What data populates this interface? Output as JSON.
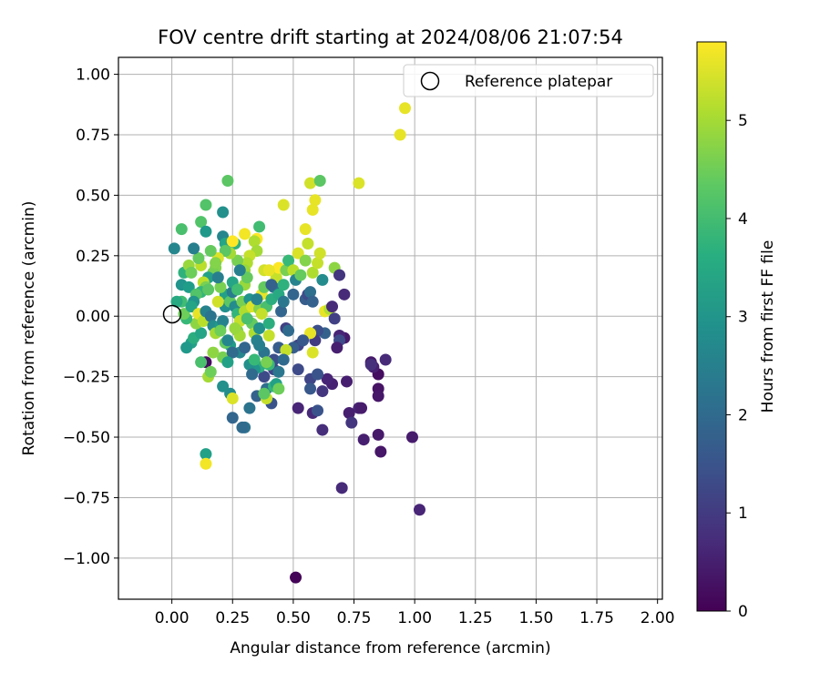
{
  "chart_data": {
    "type": "scatter",
    "title": "FOV centre drift starting at 2024/08/06 21:07:54",
    "xlabel": "Angular distance from reference (arcmin)",
    "ylabel": "Rotation from reference (arcmin)",
    "xlim": [
      -0.22,
      2.02
    ],
    "ylim": [
      -1.17,
      1.07
    ],
    "x_ticks": [
      "0.00",
      "0.25",
      "0.50",
      "0.75",
      "1.00",
      "1.25",
      "1.50",
      "1.75",
      "2.00"
    ],
    "y_ticks": [
      "1.00",
      "0.75",
      "0.50",
      "0.25",
      "0.00",
      "−0.25",
      "−0.50",
      "−0.75",
      "−1.00"
    ],
    "grid": true,
    "legend": {
      "position": "upper-right",
      "entries": [
        {
          "label": "Reference platepar",
          "marker": "open-circle"
        }
      ],
      "reference_point": [
        0,
        0
      ]
    },
    "colorbar": {
      "label": "Hours from first FF file",
      "colormap": "viridis",
      "range": [
        0,
        5.8
      ],
      "ticks": [
        "0",
        "1",
        "2",
        "3",
        "4",
        "5"
      ]
    },
    "points": [
      [
        0.51,
        -1.08,
        0.05
      ],
      [
        1.02,
        -0.8,
        0.6
      ],
      [
        0.7,
        -0.71,
        0.7
      ],
      [
        0.99,
        -0.5,
        0.45
      ],
      [
        0.86,
        -0.56,
        0.35
      ],
      [
        0.79,
        -0.51,
        0.5
      ],
      [
        0.85,
        -0.49,
        0.4
      ],
      [
        0.85,
        -0.3,
        0.3
      ],
      [
        0.85,
        -0.33,
        0.35
      ],
      [
        0.85,
        -0.24,
        0.2
      ],
      [
        0.82,
        -0.19,
        0.4
      ],
      [
        0.83,
        -0.21,
        0.5
      ],
      [
        0.82,
        -0.2,
        0.8
      ],
      [
        0.88,
        -0.18,
        0.7
      ],
      [
        0.77,
        -0.38,
        0.6
      ],
      [
        0.78,
        -0.38,
        0.45
      ],
      [
        0.73,
        -0.4,
        0.5
      ],
      [
        0.74,
        -0.44,
        0.9
      ],
      [
        0.72,
        -0.27,
        0.5
      ],
      [
        0.71,
        -0.09,
        0.4
      ],
      [
        0.69,
        -0.08,
        0.6
      ],
      [
        0.66,
        -0.28,
        0.55
      ],
      [
        0.64,
        -0.26,
        0.6
      ],
      [
        0.62,
        -0.31,
        0.9
      ],
      [
        0.62,
        -0.47,
        0.75
      ],
      [
        0.58,
        -0.4,
        0.7
      ],
      [
        0.6,
        -0.39,
        1.5
      ],
      [
        0.57,
        -0.26,
        1.2
      ],
      [
        0.57,
        -0.3,
        1.6
      ],
      [
        0.6,
        -0.24,
        1.5
      ],
      [
        0.52,
        -0.22,
        1.3
      ],
      [
        0.52,
        -0.12,
        1.2
      ],
      [
        0.52,
        -0.38,
        0.6
      ],
      [
        0.47,
        -0.05,
        1.1
      ],
      [
        0.44,
        -0.13,
        1.7
      ],
      [
        0.42,
        -0.18,
        1.4
      ],
      [
        0.42,
        -0.22,
        1.2
      ],
      [
        0.41,
        -0.36,
        1.5
      ],
      [
        0.38,
        -0.25,
        1.3
      ],
      [
        0.39,
        -0.3,
        2.1
      ],
      [
        0.35,
        -0.33,
        1.8
      ],
      [
        0.32,
        -0.38,
        2.2
      ],
      [
        0.3,
        -0.46,
        2.2
      ],
      [
        0.29,
        -0.46,
        2.0
      ],
      [
        0.25,
        -0.42,
        1.9
      ],
      [
        0.24,
        -0.32,
        2.8
      ],
      [
        0.14,
        -0.19,
        0.2
      ],
      [
        0.14,
        -0.57,
        3.3
      ],
      [
        0.14,
        -0.61,
        5.7
      ],
      [
        0.15,
        -0.25,
        5.0
      ],
      [
        0.25,
        -0.34,
        5.5
      ],
      [
        0.39,
        -0.34,
        5.3
      ],
      [
        0.38,
        -0.32,
        4.3
      ],
      [
        0.42,
        -0.29,
        3.8
      ],
      [
        0.43,
        -0.28,
        3.3
      ],
      [
        0.36,
        -0.21,
        3.6
      ],
      [
        0.34,
        -0.22,
        3.0
      ],
      [
        0.32,
        -0.2,
        2.9
      ],
      [
        0.28,
        -0.15,
        2.7
      ],
      [
        0.24,
        -0.12,
        3.2
      ],
      [
        0.22,
        -0.11,
        4.4
      ],
      [
        0.21,
        -0.17,
        4.6
      ],
      [
        0.17,
        -0.15,
        4.8
      ],
      [
        0.12,
        -0.19,
        4.1
      ],
      [
        0.08,
        -0.11,
        3.3
      ],
      [
        0.06,
        -0.13,
        3.1
      ],
      [
        0.09,
        -0.09,
        3.6
      ],
      [
        0.12,
        -0.07,
        3.4
      ],
      [
        0.1,
        -0.03,
        4.8
      ],
      [
        0.06,
        -0.01,
        3.9
      ],
      [
        0.05,
        0.01,
        4.5
      ],
      [
        0.04,
        0.06,
        4.0
      ],
      [
        0.02,
        0.06,
        3.5
      ],
      [
        0.04,
        0.13,
        3.0
      ],
      [
        0.07,
        0.12,
        3.2
      ],
      [
        0.05,
        0.18,
        3.7
      ],
      [
        0.07,
        0.21,
        4.9
      ],
      [
        0.08,
        0.18,
        4.5
      ],
      [
        0.12,
        0.21,
        5.2
      ],
      [
        0.11,
        0.24,
        4.4
      ],
      [
        0.09,
        0.28,
        2.5
      ],
      [
        0.01,
        0.28,
        2.7
      ],
      [
        0.04,
        0.36,
        4.1
      ],
      [
        0.12,
        0.39,
        4.2
      ],
      [
        0.14,
        0.35,
        3.1
      ],
      [
        0.14,
        0.46,
        4.2
      ],
      [
        0.21,
        0.43,
        2.9
      ],
      [
        0.23,
        0.56,
        4.3
      ],
      [
        0.21,
        0.33,
        2.7
      ],
      [
        0.22,
        0.3,
        3.4
      ],
      [
        0.26,
        0.3,
        3.7
      ],
      [
        0.25,
        0.31,
        5.8
      ],
      [
        0.3,
        0.34,
        5.7
      ],
      [
        0.36,
        0.37,
        4.0
      ],
      [
        0.35,
        0.32,
        5.8
      ],
      [
        0.34,
        0.31,
        5.1
      ],
      [
        0.35,
        0.27,
        5.0
      ],
      [
        0.32,
        0.25,
        5.3
      ],
      [
        0.31,
        0.22,
        5.1
      ],
      [
        0.3,
        0.19,
        4.9
      ],
      [
        0.27,
        0.23,
        4.6
      ],
      [
        0.24,
        0.26,
        5.0
      ],
      [
        0.22,
        0.27,
        4.3
      ],
      [
        0.19,
        0.24,
        5.5
      ],
      [
        0.18,
        0.2,
        4.7
      ],
      [
        0.17,
        0.18,
        4.6
      ],
      [
        0.15,
        0.16,
        3.3
      ],
      [
        0.13,
        0.14,
        5.2
      ],
      [
        0.14,
        0.12,
        4.6
      ],
      [
        0.12,
        0.1,
        3.8
      ],
      [
        0.1,
        0.09,
        4.2
      ],
      [
        0.09,
        0.06,
        3.0
      ],
      [
        0.08,
        0.04,
        3.4
      ],
      [
        0.11,
        0.01,
        5.6
      ],
      [
        0.13,
        -0.02,
        5.2
      ],
      [
        0.14,
        0.02,
        2.6
      ],
      [
        0.16,
        0.0,
        2.2
      ],
      [
        0.17,
        -0.04,
        2.8
      ],
      [
        0.18,
        -0.07,
        5.0
      ],
      [
        0.2,
        -0.04,
        3.1
      ],
      [
        0.21,
        -0.02,
        2.6
      ],
      [
        0.22,
        0.04,
        2.9
      ],
      [
        0.22,
        0.09,
        3.3
      ],
      [
        0.24,
        0.06,
        4.3
      ],
      [
        0.25,
        0.1,
        2.4
      ],
      [
        0.25,
        0.14,
        3.4
      ],
      [
        0.26,
        0.04,
        2.8
      ],
      [
        0.27,
        0.01,
        3.8
      ],
      [
        0.27,
        -0.06,
        4.6
      ],
      [
        0.28,
        -0.02,
        5.3
      ],
      [
        0.29,
        0.06,
        4.6
      ],
      [
        0.3,
        0.02,
        5.1
      ],
      [
        0.3,
        0.13,
        4.9
      ],
      [
        0.31,
        0.16,
        4.4
      ],
      [
        0.32,
        0.07,
        3.0
      ],
      [
        0.33,
        0.04,
        5.5
      ],
      [
        0.33,
        -0.03,
        4.4
      ],
      [
        0.34,
        -0.07,
        5.1
      ],
      [
        0.35,
        -0.1,
        2.6
      ],
      [
        0.36,
        -0.05,
        2.9
      ],
      [
        0.36,
        0.03,
        4.7
      ],
      [
        0.37,
        0.09,
        5.6
      ],
      [
        0.38,
        0.12,
        4.4
      ],
      [
        0.38,
        0.19,
        5.4
      ],
      [
        0.39,
        0.04,
        4.1
      ],
      [
        0.4,
        -0.03,
        3.6
      ],
      [
        0.4,
        -0.08,
        5.3
      ],
      [
        0.41,
        0.07,
        3.6
      ],
      [
        0.42,
        0.12,
        2.2
      ],
      [
        0.43,
        0.16,
        5.3
      ],
      [
        0.44,
        0.09,
        3.5
      ],
      [
        0.44,
        0.2,
        5.8
      ],
      [
        0.45,
        0.02,
        1.9
      ],
      [
        0.46,
        0.06,
        2.3
      ],
      [
        0.46,
        0.13,
        3.7
      ],
      [
        0.47,
        0.19,
        4.6
      ],
      [
        0.48,
        0.23,
        3.9
      ],
      [
        0.5,
        0.19,
        5.2
      ],
      [
        0.5,
        0.09,
        1.9
      ],
      [
        0.51,
        0.15,
        2.6
      ],
      [
        0.52,
        0.26,
        5.5
      ],
      [
        0.53,
        0.17,
        4.4
      ],
      [
        0.55,
        0.23,
        4.7
      ],
      [
        0.55,
        0.07,
        1.7
      ],
      [
        0.56,
        0.09,
        1.3
      ],
      [
        0.57,
        0.1,
        2.1
      ],
      [
        0.58,
        0.06,
        1.8
      ],
      [
        0.58,
        0.18,
        5.1
      ],
      [
        0.56,
        0.3,
        5.3
      ],
      [
        0.55,
        0.36,
        5.6
      ],
      [
        0.58,
        0.44,
        5.6
      ],
      [
        0.59,
        0.48,
        5.6
      ],
      [
        0.57,
        0.55,
        5.4
      ],
      [
        0.61,
        0.56,
        4.3
      ],
      [
        0.46,
        0.46,
        5.5
      ],
      [
        0.6,
        0.22,
        5.3
      ],
      [
        0.61,
        0.26,
        5.4
      ],
      [
        0.62,
        0.15,
        2.8
      ],
      [
        0.63,
        0.02,
        5.6
      ],
      [
        0.65,
        0.03,
        5.1
      ],
      [
        0.66,
        0.04,
        0.7
      ],
      [
        0.67,
        0.2,
        4.8
      ],
      [
        0.69,
        0.17,
        0.9
      ],
      [
        0.71,
        0.09,
        0.7
      ],
      [
        0.69,
        -0.1,
        1.3
      ],
      [
        0.68,
        -0.13,
        0.5
      ],
      [
        0.67,
        -0.01,
        1.1
      ],
      [
        0.63,
        -0.07,
        1.8
      ],
      [
        0.6,
        -0.06,
        1.4
      ],
      [
        0.59,
        -0.1,
        1.0
      ],
      [
        0.57,
        -0.07,
        5.6
      ],
      [
        0.58,
        -0.15,
        5.5
      ],
      [
        0.54,
        -0.1,
        1.6
      ],
      [
        0.5,
        -0.13,
        1.7
      ],
      [
        0.48,
        -0.06,
        2.0
      ],
      [
        0.47,
        -0.14,
        5.3
      ],
      [
        0.46,
        -0.18,
        2.0
      ],
      [
        0.44,
        -0.23,
        2.3
      ],
      [
        0.44,
        -0.3,
        4.5
      ],
      [
        0.4,
        -0.2,
        3.9
      ],
      [
        0.38,
        -0.15,
        2.2
      ],
      [
        0.36,
        -0.12,
        2.5
      ],
      [
        0.34,
        -0.18,
        3.9
      ],
      [
        0.33,
        -0.24,
        2.0
      ],
      [
        0.3,
        -0.13,
        1.9
      ],
      [
        0.28,
        -0.08,
        5.0
      ],
      [
        0.26,
        -0.05,
        4.9
      ],
      [
        0.25,
        -0.15,
        2.0
      ],
      [
        0.23,
        -0.1,
        2.7
      ],
      [
        0.2,
        -0.06,
        4.5
      ],
      [
        0.19,
        0.06,
        5.4
      ],
      [
        0.2,
        0.12,
        4.6
      ],
      [
        0.19,
        0.16,
        2.5
      ],
      [
        0.18,
        0.22,
        4.7
      ],
      [
        0.16,
        0.27,
        4.4
      ],
      [
        0.28,
        0.19,
        2.5
      ],
      [
        0.27,
        0.11,
        4.0
      ],
      [
        0.23,
        -0.19,
        3.3
      ],
      [
        0.16,
        -0.23,
        4.5
      ],
      [
        0.21,
        -0.29,
        2.9
      ],
      [
        0.39,
        -0.19,
        4.6
      ],
      [
        0.31,
        -0.01,
        4.1
      ],
      [
        0.35,
        0.07,
        2.6
      ],
      [
        0.4,
        0.19,
        5.6
      ],
      [
        0.77,
        0.55,
        5.5
      ],
      [
        0.94,
        0.75,
        5.6
      ],
      [
        0.96,
        0.86,
        5.6
      ],
      [
        0.15,
        0.11,
        4.3
      ],
      [
        0.41,
        0.13,
        1.8
      ],
      [
        0.37,
        0.01,
        5.3
      ]
    ]
  }
}
